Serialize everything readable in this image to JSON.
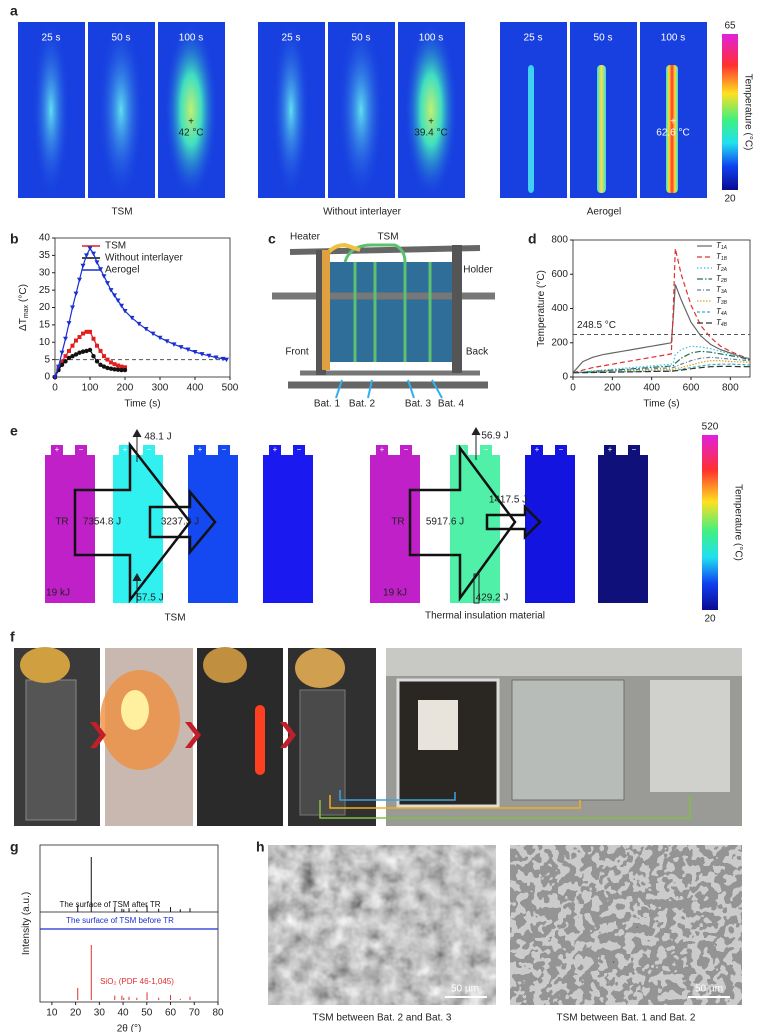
{
  "panel_labels": [
    "a",
    "b",
    "c",
    "d",
    "e",
    "f",
    "g",
    "h"
  ],
  "panel_a": {
    "times": [
      "25 s",
      "50 s",
      "100 s"
    ],
    "groups": [
      "TSM",
      "Without interlayer",
      "Aerogel"
    ],
    "annotations": [
      "42 °C",
      "39.4 °C",
      "62.6 °C"
    ],
    "colorbar": {
      "max": 65,
      "min": 20,
      "label": "Temperature (°C)"
    }
  },
  "panel_c": {
    "labels": [
      "Heater",
      "TSM",
      "Holder",
      "Front",
      "Back",
      "Bat. 1",
      "Bat. 2",
      "Bat. 3",
      "Bat. 4"
    ]
  },
  "panel_e": {
    "plus": "+",
    "minus": "−",
    "left": {
      "top": "48.1 J",
      "big": "7354.8 J",
      "small": "3237.3 J",
      "bottom": "57.5 J",
      "tr": "TR",
      "energy": "19 kJ",
      "caption": "TSM"
    },
    "right": {
      "top": "56.9 J",
      "big": "5917.6 J",
      "small": "1417.5 J",
      "bottom": "429.2 J",
      "tr": "TR",
      "energy": "19 kJ",
      "caption": "Thermal insulation material"
    },
    "colorbar": {
      "max": 520,
      "min": 20,
      "label": "Temperature (°C)"
    }
  },
  "panel_h": {
    "scale_bar": "50 µm",
    "captions": [
      "TSM between Bat. 2 and Bat. 3",
      "TSM between Bat. 1 and Bat. 2"
    ]
  },
  "chart_data": [
    {
      "type": "line",
      "x_label": "Time (s)",
      "y_label": {
        "text": "ΔT",
        "sub": "max",
        "unit": "(°C)"
      },
      "xlim": [
        0,
        500
      ],
      "xticks": [
        0,
        100,
        200,
        300,
        400,
        500
      ],
      "ylim": [
        0,
        40
      ],
      "yticks": [
        0,
        5,
        10,
        15,
        20,
        25,
        30,
        35,
        40
      ],
      "hline": 5,
      "series": [
        {
          "name": "TSM",
          "color": "#e02020",
          "marker": "square",
          "x": [
            0,
            10,
            20,
            30,
            40,
            50,
            60,
            70,
            80,
            90,
            100,
            110,
            120,
            130,
            140,
            150,
            160,
            170,
            180,
            190,
            200
          ],
          "values": [
            0,
            2.5,
            4.5,
            6,
            7.5,
            9,
            10.5,
            11.5,
            12.5,
            13,
            13,
            11,
            9,
            7.5,
            6,
            5,
            4.2,
            3.7,
            3.3,
            3,
            2.8
          ]
        },
        {
          "name": "Without interlayer",
          "color": "#111111",
          "marker": "circle",
          "x": [
            0,
            10,
            20,
            30,
            40,
            50,
            60,
            70,
            80,
            90,
            100,
            110,
            120,
            130,
            140,
            150,
            160,
            170,
            180,
            190,
            200
          ],
          "values": [
            0,
            2,
            3.5,
            4.5,
            5.5,
            6,
            6.5,
            7,
            7.3,
            7.5,
            7.8,
            6,
            4.5,
            3.5,
            3,
            2.6,
            2.4,
            2.2,
            2.1,
            2,
            2
          ]
        },
        {
          "name": "Aerogel",
          "color": "#1a2fd0",
          "marker": "triangle",
          "x": [
            0,
            10,
            20,
            30,
            40,
            50,
            60,
            70,
            80,
            90,
            100,
            110,
            120,
            130,
            140,
            150,
            160,
            170,
            180,
            190,
            200,
            220,
            240,
            260,
            280,
            300,
            320,
            340,
            360,
            380,
            400,
            420,
            440,
            460,
            480,
            490
          ],
          "values": [
            0,
            3,
            7,
            11,
            15.5,
            20,
            24,
            28,
            32,
            35,
            37,
            35.5,
            33,
            31,
            29,
            27,
            25,
            23.5,
            22,
            20.5,
            19,
            17,
            15.3,
            13.8,
            12.5,
            11.3,
            10.3,
            9.4,
            8.6,
            7.9,
            7.2,
            6.6,
            6.1,
            5.6,
            5.2,
            5
          ]
        }
      ]
    },
    {
      "type": "line",
      "x_label": "Time (s)",
      "y_label": {
        "text": "Temperature (°C)"
      },
      "xlim": [
        0,
        900
      ],
      "xticks": [
        0,
        200,
        400,
        600,
        800
      ],
      "ylim": [
        0,
        800
      ],
      "yticks": [
        0,
        200,
        400,
        600,
        800
      ],
      "hline": 248.5,
      "hline_label": "248.5 °C",
      "x": [
        0,
        50,
        100,
        150,
        200,
        250,
        300,
        350,
        400,
        450,
        500,
        510,
        520,
        550,
        600,
        650,
        700,
        750,
        800,
        850,
        900
      ],
      "series": [
        {
          "name": "T",
          "subscript": "1A",
          "color": "#666666",
          "dash": "",
          "values": [
            25,
            90,
            115,
            130,
            140,
            150,
            160,
            170,
            180,
            190,
            200,
            350,
            540,
            450,
            320,
            240,
            190,
            160,
            140,
            120,
            105
          ]
        },
        {
          "name": "T",
          "subscript": "1B",
          "color": "#e03030",
          "dash": "5 3",
          "values": [
            25,
            40,
            55,
            65,
            75,
            85,
            95,
            105,
            115,
            125,
            135,
            400,
            750,
            600,
            420,
            300,
            230,
            180,
            150,
            125,
            105
          ]
        },
        {
          "name": "T",
          "subscript": "2A",
          "color": "#40c0e0",
          "dash": "1.5 2",
          "values": [
            25,
            30,
            35,
            40,
            45,
            50,
            55,
            60,
            65,
            70,
            75,
            80,
            130,
            160,
            180,
            175,
            165,
            150,
            135,
            120,
            105
          ]
        },
        {
          "name": "T",
          "subscript": "2B",
          "color": "#207050",
          "dash": "6 2 1.5 2",
          "values": [
            25,
            28,
            32,
            36,
            40,
            44,
            48,
            52,
            56,
            60,
            64,
            66,
            80,
            110,
            140,
            150,
            145,
            135,
            125,
            115,
            100
          ]
        },
        {
          "name": "T",
          "subscript": "3A",
          "color": "#6080a0",
          "dash": "4 2 1 2",
          "values": [
            25,
            27,
            30,
            33,
            36,
            39,
            42,
            45,
            48,
            51,
            54,
            55,
            60,
            75,
            95,
            110,
            115,
            110,
            105,
            100,
            95
          ]
        },
        {
          "name": "T",
          "subscript": "3B",
          "color": "#e0a020",
          "dash": "1.5 1.5",
          "values": [
            25,
            26,
            28,
            30,
            32,
            34,
            36,
            38,
            40,
            42,
            44,
            45,
            48,
            55,
            70,
            85,
            95,
            95,
            90,
            88,
            85
          ]
        },
        {
          "name": "T",
          "subscript": "4A",
          "color": "#30b0c0",
          "dash": "3 2",
          "values": [
            25,
            26,
            27,
            28,
            29,
            30,
            31,
            32,
            33,
            34,
            35,
            36,
            38,
            45,
            55,
            65,
            72,
            75,
            75,
            73,
            70
          ]
        },
        {
          "name": "T",
          "subscript": "4B",
          "color": "#333333",
          "dash": "6 3",
          "values": [
            25,
            25,
            26,
            27,
            28,
            29,
            30,
            31,
            32,
            33,
            34,
            35,
            36,
            40,
            48,
            55,
            60,
            62,
            62,
            61,
            60
          ]
        }
      ]
    },
    {
      "type": "stem",
      "x_label": "2θ (°)",
      "y_label": {
        "text": "Intensity (a.u.)"
      },
      "xlim": [
        5,
        80
      ],
      "xticks": [
        10,
        20,
        30,
        40,
        50,
        60,
        70,
        80
      ],
      "ylim": [
        0,
        100
      ],
      "trace_label": "The surface of TSM before TR",
      "trace_color": "#1a2fd0",
      "series": [
        {
          "name": "The surface of TSM after TR",
          "color": "#111111",
          "x": [
            20.9,
            26.6,
            36.5,
            39.5,
            40.3,
            42.5,
            45.8,
            50.1,
            55.0,
            60.0,
            64.1,
            68.2
          ],
          "values": [
            12,
            100,
            9,
            6,
            5,
            7,
            4,
            12,
            6,
            9,
            5,
            7
          ]
        },
        {
          "name": "SiO₂ (PDF 46-1,045)",
          "color": "#e03030",
          "x": [
            20.9,
            26.6,
            36.5,
            39.5,
            40.3,
            42.5,
            45.8,
            50.1,
            55.0,
            60.0,
            64.1,
            68.2
          ],
          "values": [
            22,
            100,
            8,
            8,
            4,
            6,
            4,
            14,
            4,
            9,
            2,
            6
          ]
        }
      ]
    }
  ]
}
